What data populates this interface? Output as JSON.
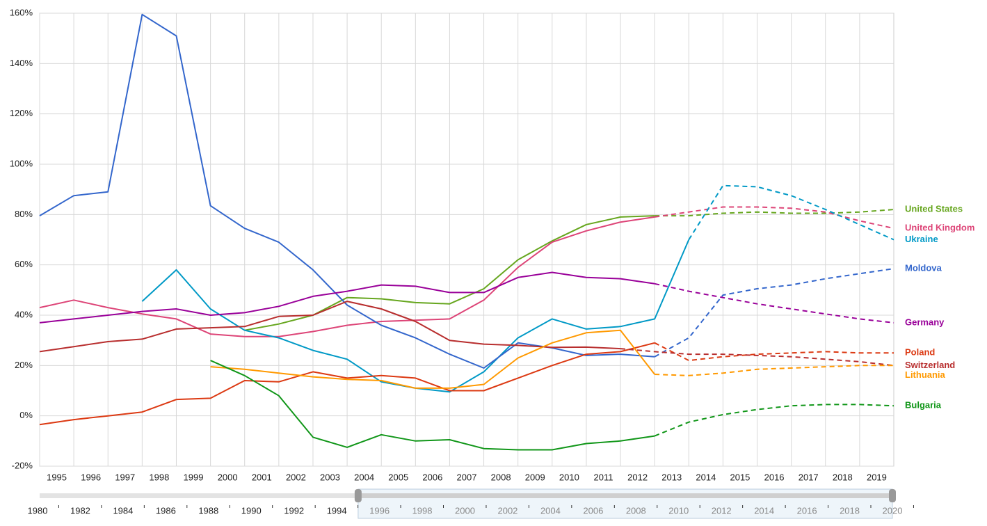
{
  "chart_data": {
    "type": "line",
    "x": [
      1995,
      1996,
      1997,
      1998,
      1999,
      2000,
      2001,
      2002,
      2003,
      2004,
      2005,
      2006,
      2007,
      2008,
      2009,
      2010,
      2011,
      2012,
      2013,
      2014,
      2015,
      2016,
      2017,
      2018,
      2019,
      2020
    ],
    "xlim": [
      1995,
      2020
    ],
    "xticks": [
      1995,
      1996,
      1997,
      1998,
      1999,
      2000,
      2001,
      2002,
      2003,
      2004,
      2005,
      2006,
      2007,
      2008,
      2009,
      2010,
      2011,
      2012,
      2013,
      2014,
      2015,
      2016,
      2017,
      2018,
      2019
    ],
    "ylim": [
      -20,
      160
    ],
    "yticks": [
      {
        "value": -20,
        "label": "-20%"
      },
      {
        "value": 0,
        "label": "0%"
      },
      {
        "value": 20,
        "label": "20%"
      },
      {
        "value": 40,
        "label": "40%"
      },
      {
        "value": 60,
        "label": "60%"
      },
      {
        "value": 80,
        "label": "80%"
      },
      {
        "value": 100,
        "label": "100%"
      },
      {
        "value": 120,
        "label": "120%"
      },
      {
        "value": 140,
        "label": "140%"
      },
      {
        "value": 160,
        "label": "160%"
      }
    ],
    "grid": true,
    "series": [
      {
        "name": "United States",
        "color": "#66a61e",
        "dashed_from": 2013,
        "values": [
          null,
          null,
          null,
          null,
          null,
          null,
          34,
          36.5,
          40,
          47,
          46.5,
          45,
          44.5,
          50.5,
          62,
          69.5,
          76,
          79,
          79.5,
          79.5,
          80.5,
          81,
          80.5,
          80.5,
          81,
          82
        ]
      },
      {
        "name": "United Kingdom",
        "color": "#dd4477",
        "dashed_from": 2013,
        "values": [
          43,
          46,
          43,
          40.5,
          38.5,
          32.5,
          31.5,
          31.5,
          33.5,
          36,
          37.5,
          38,
          38.5,
          46,
          59,
          69,
          73.5,
          77,
          79,
          81,
          83,
          83,
          82.5,
          81,
          77.5,
          74.5
        ]
      },
      {
        "name": "Ukraine",
        "color": "#0099c6",
        "dashed_from": 2014,
        "values": [
          null,
          null,
          null,
          45.5,
          58,
          42.5,
          34,
          31,
          26,
          22.5,
          13.5,
          11,
          9.5,
          17.5,
          31,
          38.5,
          34.5,
          35.5,
          38.5,
          70,
          91.5,
          91,
          87.5,
          82,
          76,
          70
        ]
      },
      {
        "name": "Moldova",
        "color": "#3366cc",
        "dashed_from": 2013,
        "values": [
          79.5,
          87.5,
          89,
          159.5,
          151,
          83.5,
          74.5,
          69,
          58,
          44,
          36,
          31,
          24.5,
          19,
          29,
          27,
          24,
          24.5,
          23.5,
          31,
          48,
          50.5,
          52,
          54.5,
          56.5,
          58.5
        ]
      },
      {
        "name": "Germany",
        "color": "#990099",
        "dashed_from": 2013,
        "values": [
          37,
          38.5,
          40,
          41.5,
          42.5,
          40,
          41,
          43.5,
          47.5,
          49.5,
          52,
          51.5,
          49,
          49,
          55,
          57,
          55,
          54.5,
          52.5,
          49.5,
          47,
          44.5,
          42.5,
          40.5,
          38.5,
          37
        ]
      },
      {
        "name": "Poland",
        "color": "#dc3912",
        "dashed_from": 2013,
        "values": [
          -3.5,
          -1.5,
          0,
          1.5,
          6.5,
          7,
          14,
          13.5,
          17.5,
          15,
          16,
          15,
          10,
          10,
          15,
          20,
          24.5,
          25.5,
          29,
          22,
          23.5,
          24.5,
          25,
          25.5,
          25,
          25
        ]
      },
      {
        "name": "Switzerland",
        "color": "#b82e2e",
        "dashed_from": 2012,
        "values": [
          25.5,
          27.5,
          29.5,
          30.5,
          34.5,
          35,
          35.5,
          39.5,
          40,
          45.5,
          42.5,
          37.5,
          30,
          28.5,
          28,
          27.2,
          27.3,
          26.7,
          25.5,
          24.5,
          24.5,
          24,
          23.5,
          22.5,
          21.5,
          20
        ]
      },
      {
        "name": "Lithuania",
        "color": "#ff9900",
        "dashed_from": 2013,
        "values": [
          null,
          null,
          null,
          null,
          null,
          19.5,
          18.5,
          17,
          15.5,
          14.5,
          14,
          11,
          11,
          12.5,
          23,
          29,
          33,
          34,
          16.5,
          16,
          17,
          18.5,
          19,
          19.5,
          20,
          20
        ]
      },
      {
        "name": "Bulgaria",
        "color": "#109618",
        "dashed_from": 2013,
        "values": [
          null,
          null,
          null,
          null,
          null,
          22,
          16,
          8,
          -8.5,
          -12.5,
          -7.5,
          -10,
          -9.5,
          -13,
          -13.5,
          -13.5,
          -11,
          -10,
          -8,
          -2.5,
          0.5,
          2.5,
          4,
          4.5,
          4.5,
          4
        ]
      }
    ],
    "timeline": {
      "ticks": [
        1980,
        1982,
        1984,
        1986,
        1988,
        1990,
        1992,
        1994,
        1996,
        1998,
        2000,
        2002,
        2004,
        2006,
        2008,
        2010,
        2012,
        2014,
        2016,
        2018,
        2020
      ],
      "range": [
        1995,
        2020
      ]
    }
  }
}
